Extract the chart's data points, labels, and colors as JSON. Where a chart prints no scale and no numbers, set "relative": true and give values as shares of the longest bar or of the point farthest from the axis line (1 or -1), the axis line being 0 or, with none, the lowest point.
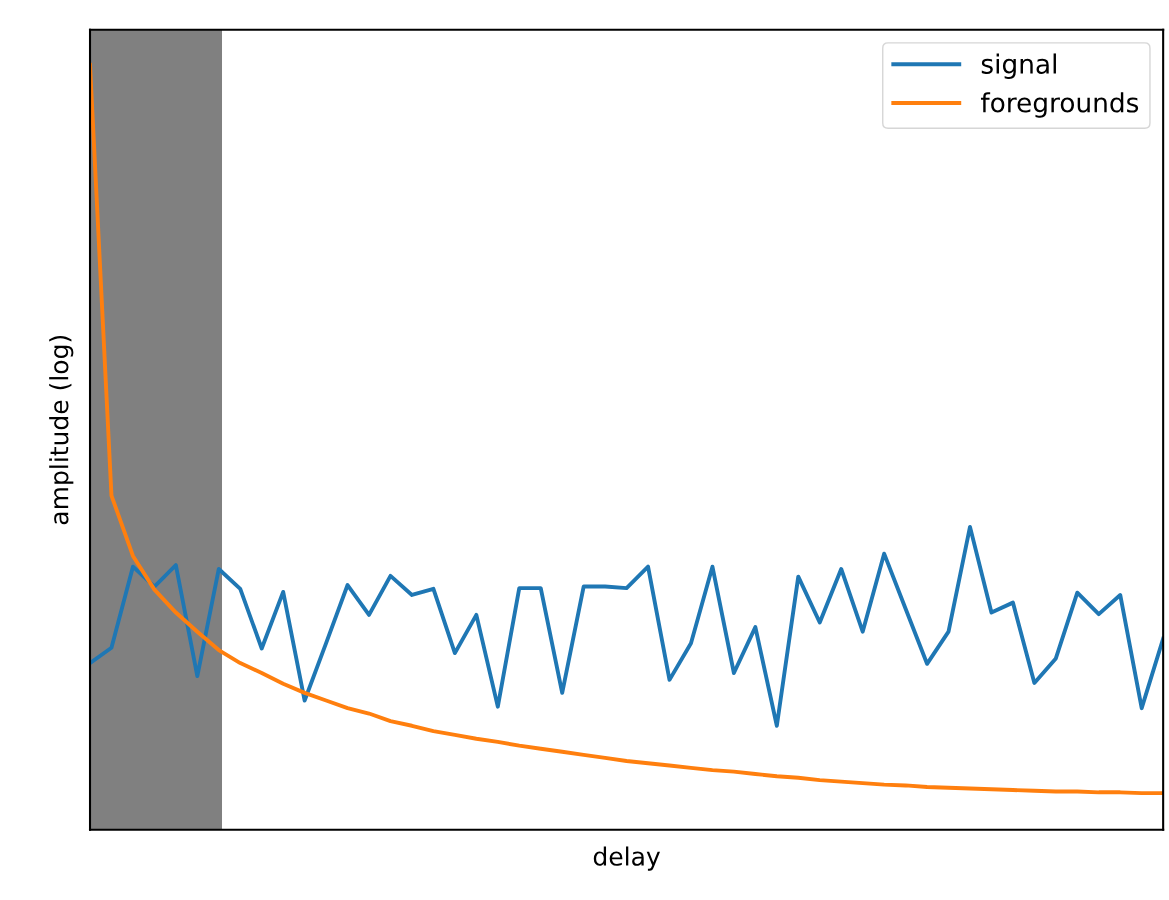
{
  "chart_data": {
    "type": "line",
    "relative": true,
    "xlabel": "delay",
    "ylabel": "amplitude (log)",
    "legend": "top right",
    "categories": [
      null,
      null,
      null,
      null,
      null,
      null,
      null,
      null,
      null,
      null,
      null,
      null,
      null,
      null,
      null,
      null,
      null,
      null,
      null,
      null,
      null,
      null,
      null,
      null,
      null,
      null,
      null,
      null,
      null,
      null,
      null,
      null,
      null,
      null,
      null,
      null,
      null,
      null,
      null,
      null,
      null,
      null,
      null,
      null,
      null,
      null,
      null,
      null,
      null,
      null,
      null
    ],
    "series": [
      {
        "name": "signal",
        "color": "#1f77b4",
        "values": [
          0.218,
          0.238,
          0.344,
          0.318,
          0.346,
          0.201,
          0.341,
          0.315,
          0.237,
          0.311,
          0.169,
          0.244,
          0.32,
          0.281,
          0.332,
          0.307,
          0.315,
          0.231,
          0.281,
          0.161,
          0.316,
          0.316,
          0.179,
          0.318,
          0.318,
          0.316,
          0.344,
          0.196,
          0.244,
          0.344,
          0.205,
          0.265,
          0.136,
          0.331,
          0.271,
          0.341,
          0.259,
          0.361,
          0.289,
          0.217,
          0.259,
          0.396,
          0.284,
          0.297,
          0.192,
          0.224,
          0.31,
          0.282,
          0.307,
          0.159,
          0.25
        ]
      },
      {
        "name": "foregrounds",
        "color": "#ff7f0e",
        "values": [
          1,
          0.437,
          0.358,
          0.314,
          0.284,
          0.259,
          0.235,
          0.218,
          0.205,
          0.191,
          0.179,
          0.169,
          0.159,
          0.152,
          0.142,
          0.136,
          0.129,
          0.124,
          0.119,
          0.115,
          0.11,
          0.106,
          0.102,
          0.098,
          0.094,
          0.09,
          0.087,
          0.084,
          0.081,
          0.078,
          0.076,
          0.073,
          0.07,
          0.068,
          0.065,
          0.063,
          0.061,
          0.059,
          0.058,
          0.056,
          0.055,
          0.054,
          0.053,
          0.052,
          0.051,
          0.05,
          0.05,
          0.049,
          0.049,
          0.048,
          0.048
        ]
      }
    ]
  }
}
